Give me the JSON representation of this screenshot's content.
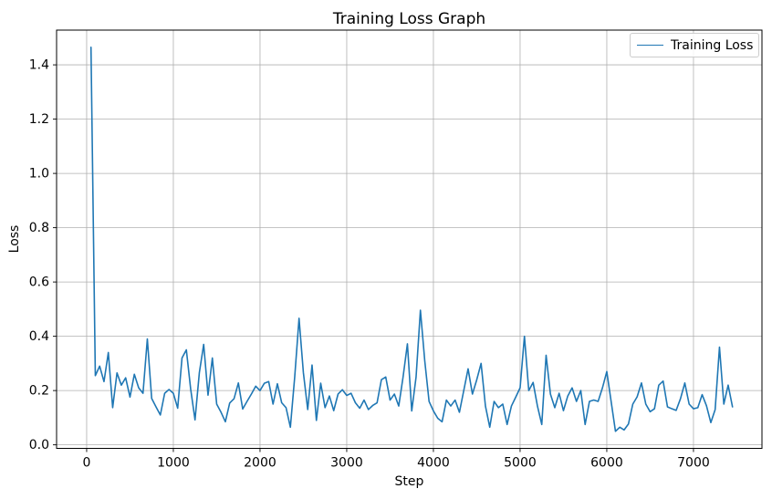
{
  "window": {
    "background": "#ffffff"
  },
  "chart_data": {
    "type": "line",
    "title": "Training Loss Graph",
    "xlabel": "Step",
    "ylabel": "Loss",
    "grid": true,
    "grid_color": "#b0b0b0",
    "axis_color": "#000000",
    "background_color": "#ffffff",
    "legend": {
      "position": "upper right",
      "entries": [
        {
          "label": "Training Loss",
          "color": "#1f77b4"
        }
      ]
    },
    "xlim": [
      -347,
      7790
    ],
    "ylim": [
      -0.013,
      1.528
    ],
    "x_ticks": [
      0,
      1000,
      2000,
      3000,
      4000,
      5000,
      6000,
      7000
    ],
    "x_tick_labels": [
      "0",
      "1000",
      "2000",
      "3000",
      "4000",
      "5000",
      "6000",
      "7000"
    ],
    "y_ticks": [
      0.0,
      0.2,
      0.4,
      0.6,
      0.8,
      1.0,
      1.2,
      1.4
    ],
    "y_tick_labels": [
      "0.0",
      "0.2",
      "0.4",
      "0.6",
      "0.8",
      "1.0",
      "1.2",
      "1.4"
    ],
    "series": [
      {
        "name": "Training Loss",
        "color": "#1f77b4",
        "x": [
          50,
          100,
          150,
          200,
          250,
          300,
          350,
          400,
          450,
          500,
          550,
          600,
          650,
          700,
          750,
          800,
          850,
          900,
          950,
          1000,
          1050,
          1100,
          1150,
          1200,
          1250,
          1300,
          1350,
          1400,
          1450,
          1500,
          1550,
          1600,
          1650,
          1700,
          1750,
          1800,
          1850,
          1900,
          1950,
          2000,
          2050,
          2100,
          2150,
          2200,
          2250,
          2300,
          2350,
          2400,
          2450,
          2500,
          2550,
          2600,
          2650,
          2700,
          2750,
          2800,
          2850,
          2900,
          2950,
          3000,
          3050,
          3100,
          3150,
          3200,
          3250,
          3300,
          3350,
          3400,
          3450,
          3500,
          3550,
          3600,
          3650,
          3700,
          3750,
          3800,
          3850,
          3900,
          3950,
          4000,
          4050,
          4100,
          4150,
          4200,
          4250,
          4300,
          4350,
          4400,
          4450,
          4500,
          4550,
          4600,
          4650,
          4700,
          4750,
          4800,
          4850,
          4900,
          4950,
          5000,
          5050,
          5100,
          5150,
          5200,
          5250,
          5300,
          5350,
          5400,
          5450,
          5500,
          5550,
          5600,
          5650,
          5700,
          5750,
          5800,
          5850,
          5900,
          5950,
          6000,
          6050,
          6100,
          6150,
          6200,
          6250,
          6300,
          6350,
          6400,
          6450,
          6500,
          6550,
          6600,
          6650,
          6700,
          6750,
          6800,
          6850,
          6900,
          6950,
          7000,
          7050,
          7100,
          7150,
          7200,
          7250,
          7300,
          7350,
          7400,
          7450
        ],
        "y": [
          1.465,
          0.255,
          0.29,
          0.233,
          0.34,
          0.137,
          0.265,
          0.22,
          0.247,
          0.176,
          0.26,
          0.21,
          0.19,
          0.39,
          0.171,
          0.14,
          0.11,
          0.19,
          0.204,
          0.19,
          0.135,
          0.32,
          0.35,
          0.205,
          0.092,
          0.266,
          0.37,
          0.183,
          0.32,
          0.15,
          0.12,
          0.085,
          0.154,
          0.17,
          0.228,
          0.132,
          0.16,
          0.187,
          0.216,
          0.2,
          0.227,
          0.233,
          0.15,
          0.225,
          0.155,
          0.137,
          0.065,
          0.25,
          0.466,
          0.266,
          0.13,
          0.294,
          0.09,
          0.227,
          0.137,
          0.18,
          0.126,
          0.187,
          0.203,
          0.182,
          0.19,
          0.155,
          0.135,
          0.165,
          0.13,
          0.145,
          0.155,
          0.24,
          0.25,
          0.165,
          0.187,
          0.143,
          0.25,
          0.372,
          0.125,
          0.25,
          0.496,
          0.31,
          0.16,
          0.125,
          0.098,
          0.085,
          0.165,
          0.143,
          0.165,
          0.12,
          0.2,
          0.28,
          0.187,
          0.24,
          0.3,
          0.143,
          0.065,
          0.16,
          0.137,
          0.15,
          0.075,
          0.143,
          0.176,
          0.21,
          0.4,
          0.2,
          0.23,
          0.143,
          0.075,
          0.33,
          0.187,
          0.137,
          0.19,
          0.126,
          0.18,
          0.21,
          0.16,
          0.2,
          0.075,
          0.16,
          0.165,
          0.16,
          0.21,
          0.27,
          0.16,
          0.05,
          0.065,
          0.055,
          0.077,
          0.15,
          0.177,
          0.228,
          0.15,
          0.122,
          0.133,
          0.22,
          0.235,
          0.14,
          0.133,
          0.127,
          0.17,
          0.228,
          0.15,
          0.133,
          0.137,
          0.185,
          0.144,
          0.082,
          0.13,
          0.36,
          0.15,
          0.22,
          0.14
        ]
      }
    ]
  }
}
